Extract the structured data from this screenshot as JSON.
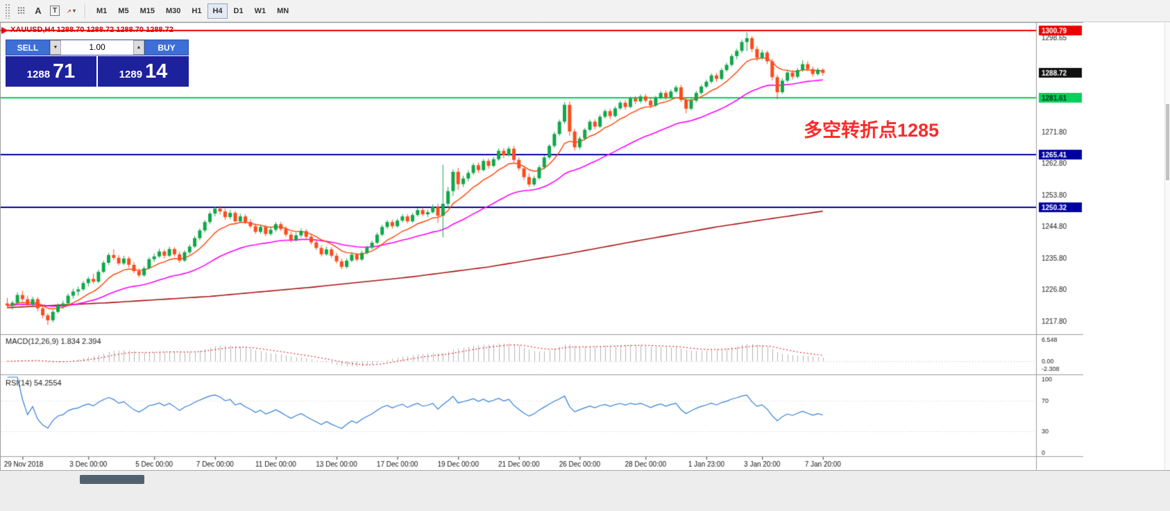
{
  "toolbar": {
    "icon_a": "A",
    "icon_t": "T",
    "dropdown_caret": "▾",
    "timeframes": [
      "M1",
      "M5",
      "M15",
      "M30",
      "H1",
      "H4",
      "D1",
      "W1",
      "MN"
    ],
    "active_timeframe": "H4"
  },
  "icons": {
    "caret_down": "▼",
    "caret_up": "▲"
  },
  "trade_panel": {
    "sell_label": "SELL",
    "buy_label": "BUY",
    "volume": "1.00",
    "sell_price_main": "1288",
    "sell_price_pips": "71",
    "buy_price_main": "1289",
    "buy_price_pips": "14"
  },
  "chart_data": {
    "type": "candlestick",
    "symbol": "XAUUSD",
    "timeframe": "H4",
    "ohlc_header": "XAUUSD,H4 1288.70 1288.72 1288.70 1288.72",
    "up_color": "#10a74a",
    "down_color": "#fc4b1c",
    "annotation": {
      "text": "多空转折点1285",
      "color": "#fb2b2b"
    },
    "hlines": [
      {
        "price": 1300.79,
        "color": "#ee0000",
        "width": 2
      },
      {
        "price": 1281.61,
        "color": "#00d15c",
        "width": 2
      },
      {
        "price": 1265.41,
        "color": "#0000a0",
        "width": 2
      },
      {
        "price": 1250.32,
        "color": "#0000a0",
        "width": 2
      }
    ],
    "price_badges": [
      {
        "value": "1300.79",
        "price": 1300.79,
        "bg": "#ee0000",
        "fg": "#ffffff"
      },
      {
        "value": "1288.72",
        "price": 1288.72,
        "bg": "#101010",
        "fg": "#ffffff"
      },
      {
        "value": "1281.61",
        "price": 1281.61,
        "bg": "#00d15c",
        "fg": "#00320f"
      },
      {
        "value": "1265.41",
        "price": 1265.41,
        "bg": "#0000a0",
        "fg": "#ffffff"
      },
      {
        "value": "1250.32",
        "price": 1250.32,
        "bg": "#0000a0",
        "fg": "#ffffff"
      }
    ],
    "price_ticks": [
      "1298.65",
      "1271.80",
      "1262.80",
      "1253.80",
      "1244.80",
      "1235.80",
      "1226.80",
      "1217.80"
    ],
    "time_labels": [
      {
        "i": 3,
        "t": "29 Nov 2018"
      },
      {
        "i": 16,
        "t": "3 Dec 00:00"
      },
      {
        "i": 29,
        "t": "5 Dec 00:00"
      },
      {
        "i": 41,
        "t": "7 Dec 00:00"
      },
      {
        "i": 53,
        "t": "11 Dec 00:00"
      },
      {
        "i": 65,
        "t": "13 Dec 00:00"
      },
      {
        "i": 77,
        "t": "17 Dec 00:00"
      },
      {
        "i": 89,
        "t": "19 Dec 00:00"
      },
      {
        "i": 101,
        "t": "21 Dec 00:00"
      },
      {
        "i": 113,
        "t": "26 Dec 00:00"
      },
      {
        "i": 126,
        "t": "28 Dec 00:00"
      },
      {
        "i": 138,
        "t": "1 Jan 23:00"
      },
      {
        "i": 149,
        "t": "3 Jan 20:00"
      },
      {
        "i": 161,
        "t": "7 Jan 20:00"
      }
    ],
    "overlays": {
      "fast_ma": {
        "type": "ema",
        "period": 10,
        "color": "#ff4000"
      },
      "mid_ma": {
        "type": "ema",
        "period": 34,
        "color": "#ff00ff"
      },
      "slow_ma": {
        "type": "anchors",
        "color": "#aa1111",
        "points": [
          [
            0,
            1221.8
          ],
          [
            20,
            1223.2
          ],
          [
            40,
            1225.0
          ],
          [
            60,
            1227.6
          ],
          [
            80,
            1230.6
          ],
          [
            95,
            1233.4
          ],
          [
            110,
            1237.0
          ],
          [
            125,
            1241.0
          ],
          [
            140,
            1244.8
          ],
          [
            150,
            1247.0
          ],
          [
            161,
            1249.3
          ]
        ]
      }
    },
    "indicators": {
      "macd": {
        "label": "MACD(12,26,9) 1.834 2.394",
        "fast": 12,
        "slow": 26,
        "signal": 9,
        "axis": [
          "6.548",
          "0.00",
          "-2.308"
        ],
        "hist_color": "#b4b4b4",
        "signal_color": "#e00000"
      },
      "rsi": {
        "label": "RSI(14) 54.2554",
        "period": 14,
        "axis": [
          "100",
          "70",
          "30",
          "0"
        ],
        "levels": [
          70,
          30
        ],
        "color": "#2f7ed8"
      }
    },
    "candles": [
      [
        1223.0,
        1224.6,
        1221.6,
        1222.4
      ],
      [
        1222.4,
        1223.8,
        1221.2,
        1223.2
      ],
      [
        1223.2,
        1226.2,
        1222.8,
        1225.4
      ],
      [
        1225.4,
        1226.6,
        1223.6,
        1224.2
      ],
      [
        1224.2,
        1225.2,
        1221.8,
        1222.6
      ],
      [
        1222.6,
        1224.9,
        1222.0,
        1224.2
      ],
      [
        1224.2,
        1224.8,
        1220.8,
        1221.6
      ],
      [
        1221.6,
        1222.4,
        1218.8,
        1219.6
      ],
      [
        1219.6,
        1220.2,
        1216.9,
        1218.2
      ],
      [
        1218.2,
        1221.2,
        1217.6,
        1220.6
      ],
      [
        1220.6,
        1223.0,
        1220.2,
        1222.4
      ],
      [
        1222.4,
        1223.8,
        1221.4,
        1223.0
      ],
      [
        1223.0,
        1225.8,
        1222.6,
        1225.2
      ],
      [
        1225.2,
        1227.2,
        1224.4,
        1226.4
      ],
      [
        1226.4,
        1227.8,
        1225.2,
        1227.0
      ],
      [
        1227.0,
        1229.4,
        1226.6,
        1228.8
      ],
      [
        1228.8,
        1230.6,
        1227.8,
        1230.0
      ],
      [
        1230.0,
        1231.4,
        1228.6,
        1229.2
      ],
      [
        1229.2,
        1232.6,
        1228.8,
        1232.0
      ],
      [
        1232.0,
        1235.2,
        1231.6,
        1234.6
      ],
      [
        1234.6,
        1237.4,
        1234.0,
        1236.8
      ],
      [
        1236.8,
        1238.4,
        1235.4,
        1236.0
      ],
      [
        1236.0,
        1236.8,
        1233.8,
        1234.4
      ],
      [
        1234.4,
        1236.6,
        1233.9,
        1235.8
      ],
      [
        1235.8,
        1236.4,
        1233.2,
        1234.0
      ],
      [
        1234.0,
        1234.8,
        1231.6,
        1232.2
      ],
      [
        1232.2,
        1233.0,
        1230.4,
        1231.0
      ],
      [
        1231.0,
        1233.6,
        1230.6,
        1233.0
      ],
      [
        1233.0,
        1236.2,
        1232.6,
        1235.6
      ],
      [
        1235.6,
        1237.2,
        1234.8,
        1236.4
      ],
      [
        1236.4,
        1238.6,
        1236.0,
        1237.8
      ],
      [
        1237.8,
        1238.4,
        1235.8,
        1236.6
      ],
      [
        1236.6,
        1239.2,
        1236.2,
        1238.5
      ],
      [
        1238.5,
        1239.0,
        1236.4,
        1237.0
      ],
      [
        1237.0,
        1237.8,
        1234.6,
        1235.2
      ],
      [
        1235.2,
        1238.2,
        1234.8,
        1237.6
      ],
      [
        1237.6,
        1239.8,
        1237.0,
        1239.2
      ],
      [
        1239.2,
        1242.2,
        1238.8,
        1241.6
      ],
      [
        1241.6,
        1244.4,
        1241.0,
        1243.8
      ],
      [
        1243.8,
        1246.8,
        1243.2,
        1246.2
      ],
      [
        1246.2,
        1249.2,
        1245.6,
        1248.6
      ],
      [
        1248.6,
        1250.6,
        1247.8,
        1250.0
      ],
      [
        1250.0,
        1250.8,
        1248.4,
        1249.2
      ],
      [
        1249.2,
        1250.0,
        1246.8,
        1247.6
      ],
      [
        1247.6,
        1249.6,
        1247.0,
        1248.8
      ],
      [
        1248.8,
        1249.4,
        1245.8,
        1246.4
      ],
      [
        1246.4,
        1248.6,
        1246.0,
        1247.8
      ],
      [
        1247.8,
        1248.4,
        1245.6,
        1246.2
      ],
      [
        1246.2,
        1247.0,
        1244.4,
        1245.0
      ],
      [
        1245.0,
        1245.8,
        1242.8,
        1243.4
      ],
      [
        1243.4,
        1245.4,
        1242.9,
        1244.8
      ],
      [
        1244.8,
        1245.4,
        1242.2,
        1242.8
      ],
      [
        1242.8,
        1244.8,
        1242.3,
        1244.0
      ],
      [
        1244.0,
        1246.2,
        1243.4,
        1245.6
      ],
      [
        1245.6,
        1246.2,
        1243.6,
        1244.2
      ],
      [
        1244.2,
        1245.0,
        1242.0,
        1242.6
      ],
      [
        1242.6,
        1243.4,
        1240.4,
        1241.0
      ],
      [
        1241.0,
        1243.2,
        1240.6,
        1242.4
      ],
      [
        1242.4,
        1244.4,
        1241.8,
        1243.6
      ],
      [
        1243.6,
        1244.2,
        1241.4,
        1242.0
      ],
      [
        1242.0,
        1242.8,
        1239.8,
        1240.4
      ],
      [
        1240.4,
        1241.2,
        1238.2,
        1238.8
      ],
      [
        1238.8,
        1239.6,
        1236.4,
        1237.0
      ],
      [
        1237.0,
        1239.2,
        1236.6,
        1238.4
      ],
      [
        1238.4,
        1239.0,
        1236.0,
        1236.6
      ],
      [
        1236.6,
        1237.4,
        1234.4,
        1235.0
      ],
      [
        1235.0,
        1235.8,
        1232.8,
        1233.4
      ],
      [
        1233.4,
        1235.8,
        1232.9,
        1235.2
      ],
      [
        1235.2,
        1237.6,
        1234.8,
        1236.9
      ],
      [
        1236.9,
        1237.4,
        1234.9,
        1235.5
      ],
      [
        1235.5,
        1238.0,
        1235.1,
        1237.4
      ],
      [
        1237.4,
        1239.5,
        1236.9,
        1238.9
      ],
      [
        1238.9,
        1240.9,
        1238.4,
        1240.3
      ],
      [
        1240.3,
        1243.2,
        1239.9,
        1242.6
      ],
      [
        1242.6,
        1245.4,
        1242.2,
        1244.8
      ],
      [
        1244.8,
        1246.8,
        1244.2,
        1246.2
      ],
      [
        1246.2,
        1246.9,
        1244.3,
        1245.0
      ],
      [
        1245.0,
        1247.2,
        1244.6,
        1246.6
      ],
      [
        1246.6,
        1248.4,
        1246.1,
        1247.8
      ],
      [
        1247.8,
        1248.5,
        1245.8,
        1246.4
      ],
      [
        1246.4,
        1248.8,
        1246.0,
        1248.2
      ],
      [
        1248.2,
        1250.2,
        1247.7,
        1249.6
      ],
      [
        1249.6,
        1250.3,
        1247.8,
        1248.4
      ],
      [
        1248.4,
        1249.7,
        1247.6,
        1249.0
      ],
      [
        1249.0,
        1251.2,
        1248.6,
        1250.5
      ],
      [
        1250.5,
        1251.4,
        1246.0,
        1248.0
      ],
      [
        1248.0,
        1262.5,
        1241.8,
        1251.4
      ],
      [
        1251.4,
        1256.2,
        1250.2,
        1255.0
      ],
      [
        1255.0,
        1261.2,
        1253.6,
        1260.5
      ],
      [
        1260.5,
        1261.6,
        1255.4,
        1257.0
      ],
      [
        1257.0,
        1259.4,
        1256.2,
        1258.6
      ],
      [
        1258.6,
        1260.9,
        1257.8,
        1260.2
      ],
      [
        1260.2,
        1263.0,
        1259.6,
        1262.4
      ],
      [
        1262.4,
        1263.2,
        1260.2,
        1261.0
      ],
      [
        1261.0,
        1264.2,
        1260.6,
        1263.6
      ],
      [
        1263.6,
        1264.3,
        1261.4,
        1262.2
      ],
      [
        1262.2,
        1264.8,
        1261.8,
        1264.1
      ],
      [
        1264.1,
        1267.2,
        1263.6,
        1266.5
      ],
      [
        1266.5,
        1267.3,
        1264.4,
        1265.2
      ],
      [
        1265.2,
        1267.8,
        1264.8,
        1267.1
      ],
      [
        1267.1,
        1267.9,
        1263.2,
        1263.9
      ],
      [
        1263.9,
        1264.6,
        1260.8,
        1261.5
      ],
      [
        1261.5,
        1262.2,
        1258.2,
        1259.0
      ],
      [
        1259.0,
        1260.0,
        1256.2,
        1256.9
      ],
      [
        1256.9,
        1259.4,
        1256.4,
        1258.7
      ],
      [
        1258.7,
        1262.4,
        1258.2,
        1261.8
      ],
      [
        1261.8,
        1265.2,
        1261.2,
        1264.6
      ],
      [
        1264.6,
        1268.4,
        1264.1,
        1267.9
      ],
      [
        1267.9,
        1271.9,
        1267.4,
        1271.3
      ],
      [
        1271.3,
        1275.4,
        1270.8,
        1274.8
      ],
      [
        1274.8,
        1280.4,
        1274.2,
        1279.6
      ],
      [
        1279.6,
        1280.6,
        1270.8,
        1272.0
      ],
      [
        1272.0,
        1272.8,
        1266.6,
        1267.5
      ],
      [
        1267.5,
        1270.6,
        1266.9,
        1270.0
      ],
      [
        1270.0,
        1273.0,
        1269.5,
        1272.5
      ],
      [
        1272.5,
        1275.4,
        1272.0,
        1274.8
      ],
      [
        1274.8,
        1275.5,
        1272.6,
        1273.4
      ],
      [
        1273.4,
        1276.8,
        1273.0,
        1276.2
      ],
      [
        1276.2,
        1278.4,
        1275.7,
        1277.8
      ],
      [
        1277.8,
        1278.5,
        1275.5,
        1276.4
      ],
      [
        1276.4,
        1279.2,
        1276.0,
        1278.6
      ],
      [
        1278.6,
        1280.8,
        1278.1,
        1280.2
      ],
      [
        1280.2,
        1280.9,
        1278.2,
        1279.0
      ],
      [
        1279.0,
        1281.9,
        1278.6,
        1281.4
      ],
      [
        1281.4,
        1282.1,
        1279.8,
        1280.6
      ],
      [
        1280.6,
        1282.6,
        1280.1,
        1282.0
      ],
      [
        1282.0,
        1282.7,
        1280.2,
        1280.8
      ],
      [
        1280.8,
        1281.6,
        1278.6,
        1279.4
      ],
      [
        1279.4,
        1282.2,
        1279.0,
        1281.6
      ],
      [
        1281.6,
        1283.6,
        1281.1,
        1283.0
      ],
      [
        1283.0,
        1283.7,
        1281.0,
        1281.8
      ],
      [
        1281.8,
        1284.0,
        1281.3,
        1283.4
      ],
      [
        1283.4,
        1285.2,
        1282.9,
        1284.6
      ],
      [
        1284.6,
        1285.3,
        1280.4,
        1281.0
      ],
      [
        1281.0,
        1281.8,
        1277.2,
        1278.5
      ],
      [
        1278.5,
        1281.4,
        1278.0,
        1280.8
      ],
      [
        1280.8,
        1283.6,
        1280.3,
        1283.0
      ],
      [
        1283.0,
        1285.4,
        1282.5,
        1284.8
      ],
      [
        1284.8,
        1286.8,
        1284.3,
        1286.2
      ],
      [
        1286.2,
        1288.6,
        1285.7,
        1288.0
      ],
      [
        1288.0,
        1288.7,
        1286.2,
        1287.0
      ],
      [
        1287.0,
        1290.1,
        1286.6,
        1289.5
      ],
      [
        1289.5,
        1291.6,
        1289.0,
        1291.0
      ],
      [
        1291.0,
        1294.1,
        1290.5,
        1293.5
      ],
      [
        1293.5,
        1295.6,
        1292.6,
        1295.0
      ],
      [
        1295.0,
        1298.2,
        1294.4,
        1297.5
      ],
      [
        1297.5,
        1300.3,
        1294.9,
        1298.6
      ],
      [
        1298.6,
        1299.2,
        1294.6,
        1295.5
      ],
      [
        1295.5,
        1296.3,
        1292.1,
        1293.0
      ],
      [
        1293.0,
        1295.3,
        1292.4,
        1294.5
      ],
      [
        1294.5,
        1295.1,
        1291.2,
        1292.0
      ],
      [
        1292.0,
        1292.7,
        1286.6,
        1287.5
      ],
      [
        1287.5,
        1288.2,
        1281.1,
        1283.2
      ],
      [
        1283.2,
        1287.2,
        1282.7,
        1286.5
      ],
      [
        1286.5,
        1289.4,
        1286.0,
        1288.8
      ],
      [
        1288.8,
        1289.5,
        1286.8,
        1287.6
      ],
      [
        1287.6,
        1290.1,
        1287.1,
        1289.5
      ],
      [
        1289.5,
        1292.3,
        1289.0,
        1291.2
      ],
      [
        1291.2,
        1292.0,
        1289.2,
        1289.8
      ],
      [
        1289.8,
        1290.5,
        1287.6,
        1288.4
      ],
      [
        1288.4,
        1290.2,
        1287.9,
        1289.6
      ],
      [
        1289.6,
        1290.0,
        1287.9,
        1288.7
      ]
    ]
  }
}
